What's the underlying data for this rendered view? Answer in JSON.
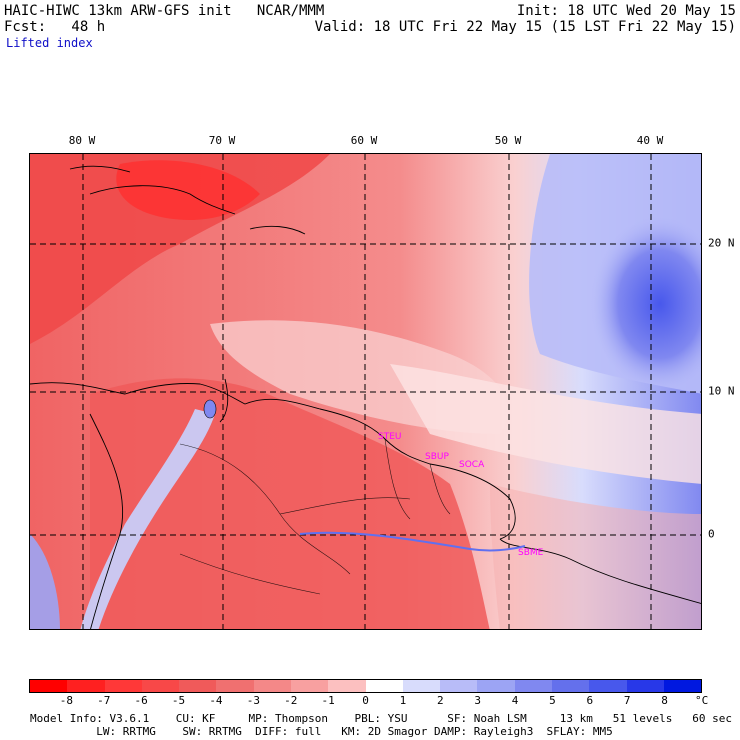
{
  "header": {
    "line1_left": "HAIC-HIWC 13km ARW-GFS init   NCAR/MMM",
    "line1_right": "Init: 18 UTC Wed 20 May 15",
    "line2_left": "Fcst:   48 h",
    "line2_right": "Valid: 18 UTC Fri 22 May 15 (15 LST Fri 22 May 15)",
    "field_name": "Lifted index"
  },
  "map": {
    "lon_labels": [
      "80 W",
      "70 W",
      "60 W",
      "50 W",
      "40 W"
    ],
    "lat_labels": [
      "20 N",
      "10 N",
      "0"
    ],
    "stations": [
      "STEU",
      "SBUP",
      "SOCA",
      "SBME"
    ]
  },
  "colorbar": {
    "labels": [
      "-8",
      "-7",
      "-6",
      "-5",
      "-4",
      "-3",
      "-2",
      "-1",
      "0",
      "1",
      "2",
      "3",
      "4",
      "5",
      "6",
      "7",
      "8"
    ],
    "unit": "°C",
    "colors": [
      "#ff0000",
      "#ff2020",
      "#ff3838",
      "#f84848",
      "#f05a5a",
      "#f07070",
      "#f48888",
      "#f8a0a0",
      "#fcc0c0",
      "#ffffff",
      "#d8dcfc",
      "#b8bcf8",
      "#9ca4f4",
      "#8088f0",
      "#6470ec",
      "#4858ec",
      "#2838e8",
      "#0018e0"
    ]
  },
  "footer": {
    "line1": "Model Info: V3.6.1    CU: KF     MP: Thompson    PBL: YSU      SF: Noah LSM     13 km   51 levels   60 sec",
    "line2": "          LW: RRTMG    SW: RRTMG  DIFF: full   KM: 2D Smagor DAMP: Rayleigh3  SFLAY: MM5"
  }
}
